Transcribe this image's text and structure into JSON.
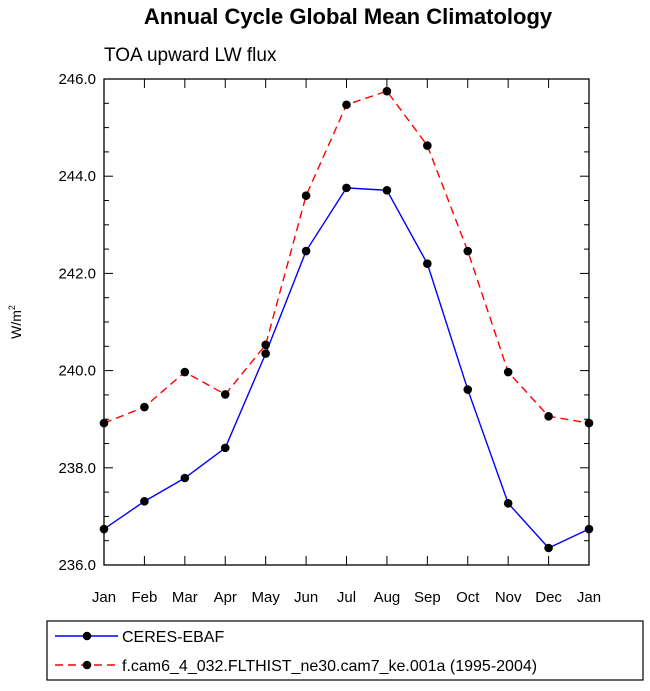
{
  "chart_data": {
    "type": "line",
    "title": "Annual Cycle Global Mean Climatology",
    "subtitle": "TOA upward LW flux",
    "xlabel": "",
    "ylabel": "W/m",
    "ylabel_superscript": "2",
    "categories": [
      "Jan",
      "Feb",
      "Mar",
      "Apr",
      "May",
      "Jun",
      "Jul",
      "Aug",
      "Sep",
      "Oct",
      "Nov",
      "Dec",
      "Jan"
    ],
    "ylim": [
      236.0,
      246.0
    ],
    "y_ticks": [
      "236.0",
      "238.0",
      "240.0",
      "242.0",
      "244.0",
      "246.0"
    ],
    "grid": false,
    "legend_position": "bottom",
    "series": [
      {
        "name": "CERES-EBAF",
        "color": "#0000ff",
        "line_style": "solid",
        "marker": "filled-circle",
        "values": [
          236.74,
          237.31,
          237.79,
          238.41,
          240.35,
          242.46,
          243.76,
          243.71,
          242.2,
          239.61,
          237.27,
          236.35,
          236.74
        ]
      },
      {
        "name": "f.cam6_4_032.FLTHIST_ne30.cam7_ke.001a (1995-2004)",
        "color": "#ff0000",
        "line_style": "dashed",
        "marker": "filled-circle",
        "values": [
          238.92,
          239.25,
          239.97,
          239.51,
          240.53,
          243.6,
          245.47,
          245.75,
          244.63,
          242.46,
          239.97,
          239.06,
          238.92
        ]
      }
    ]
  }
}
